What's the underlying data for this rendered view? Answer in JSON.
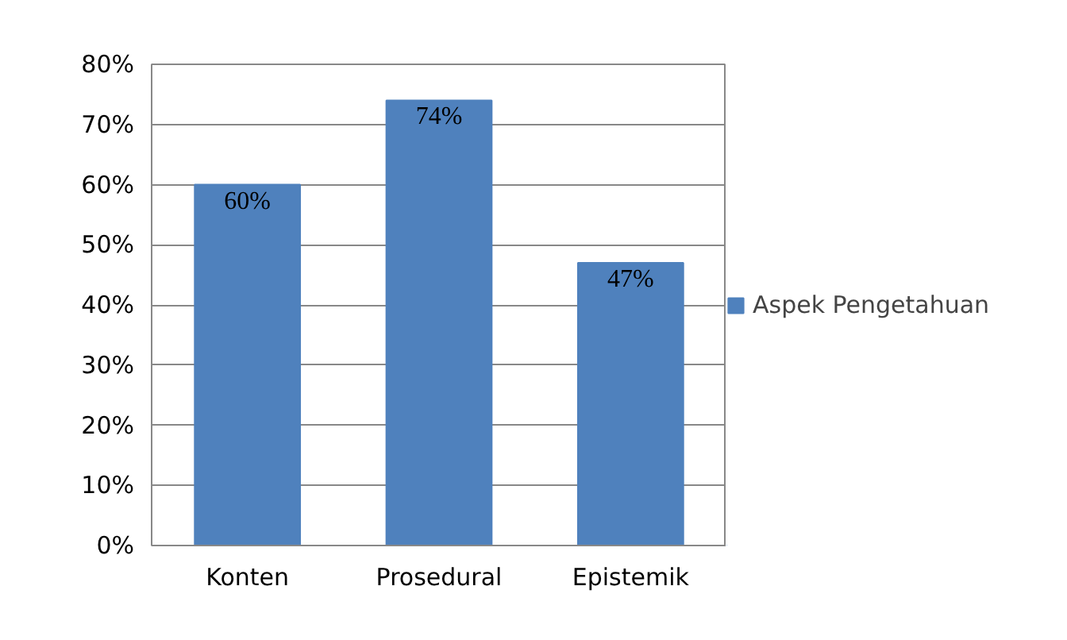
{
  "chart_data": {
    "type": "bar",
    "categories": [
      "Konten",
      "Prosedural",
      "Epistemik"
    ],
    "series": [
      {
        "name": "Aspek Pengetahuan",
        "color": "#4f81bd",
        "values": [
          60,
          74,
          47
        ]
      }
    ],
    "value_labels": [
      "60%",
      "74%",
      "47%"
    ],
    "ylim": [
      0,
      80
    ],
    "yticks": [
      {
        "value": 0,
        "label": "0%"
      },
      {
        "value": 10,
        "label": "10%"
      },
      {
        "value": 20,
        "label": "20%"
      },
      {
        "value": 30,
        "label": "30%"
      },
      {
        "value": 40,
        "label": "40%"
      },
      {
        "value": 50,
        "label": "50%"
      },
      {
        "value": 60,
        "label": "60%"
      },
      {
        "value": 70,
        "label": "70%"
      },
      {
        "value": 80,
        "label": "80%"
      }
    ],
    "grid": "y",
    "legend": "right"
  }
}
